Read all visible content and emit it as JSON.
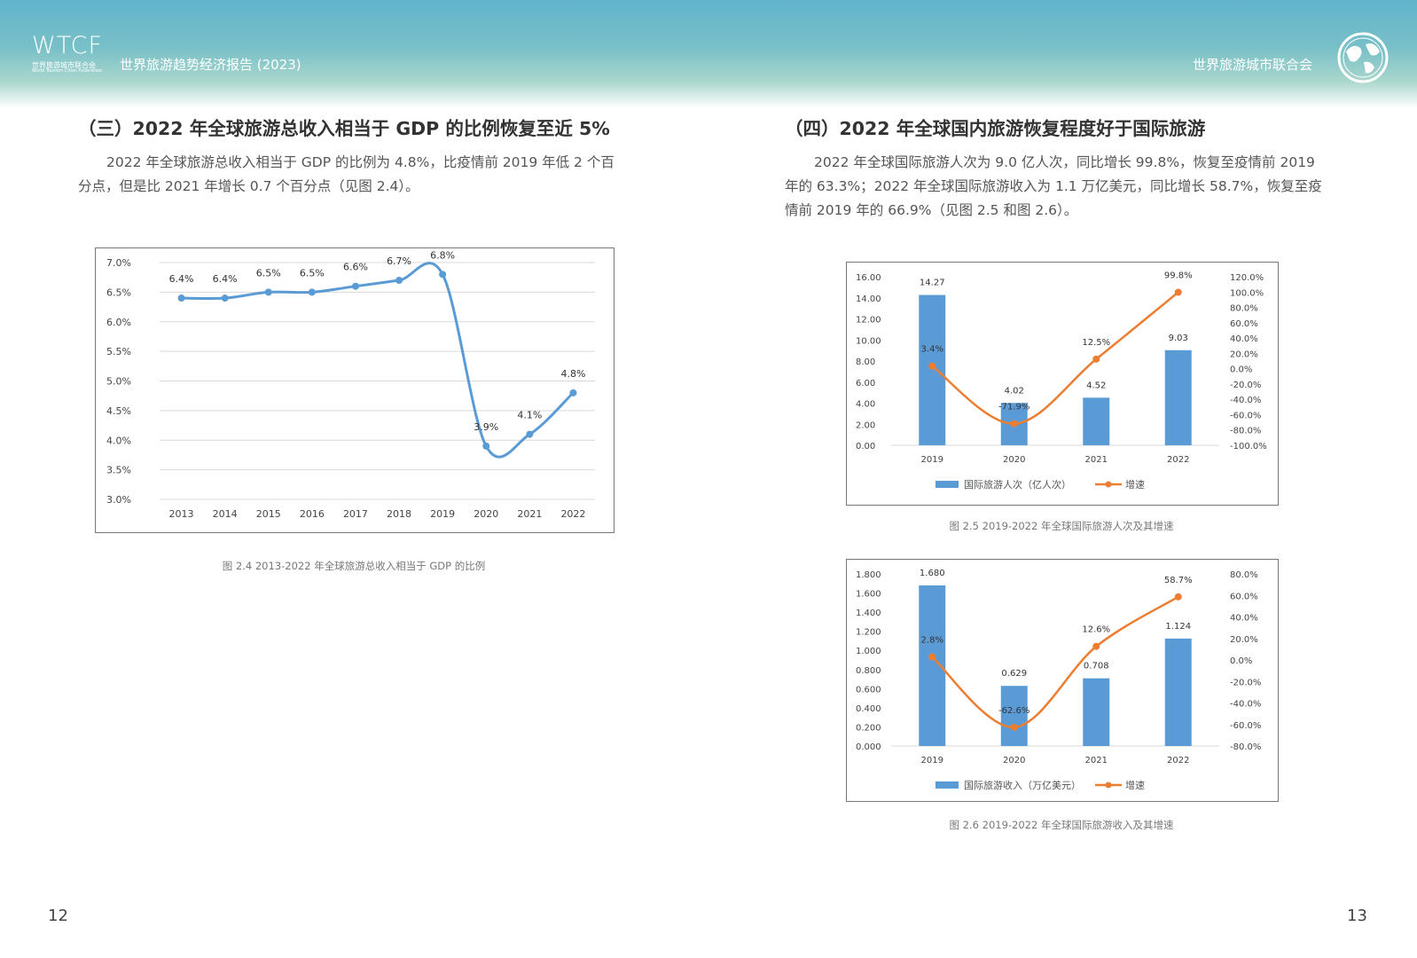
{
  "header": {
    "logo_text": "WTCF",
    "logo_sub_cn": "世界旅游城市联合会",
    "logo_sub_en": "World Tourism Cities Federation",
    "report_title": "世界旅游趋势经济报告 (2023)",
    "org_name": "世界旅游城市联合会"
  },
  "left": {
    "section_title": "（三）2022 年全球旅游总收入相当于 GDP 的比例恢复至近 5%",
    "paragraph_lines": [
      "2022 年全球旅游总收入相当于 GDP 的比例为 4.8%，比疫情前 2019 年低 2 个百",
      "分点，但是比 2021 年增长 0.7 个百分点（见图 2.4）。"
    ],
    "caption": "图 2.4 2013-2022 年全球旅游总收入相当于 GDP 的比例",
    "page_number": "12"
  },
  "right": {
    "section_title": "（四）2022 年全球国内旅游恢复程度好于国际旅游",
    "paragraph_lines": [
      "2022 年全球国际旅游人次为 9.0 亿人次，同比增长 99.8%，恢复至疫情前 2019",
      "年的 63.3%；2022 年全球国际旅游收入为 1.1 万亿美元，同比增长 58.7%，恢复至疫",
      "情前 2019 年的 66.9%（见图 2.5 和图 2.6）。"
    ],
    "caption_1": "图 2.5 2019-2022 年全球国际旅游人次及其增速",
    "caption_2": "图 2.6 2019-2022 年全球国际旅游收入及其增速",
    "page_number": "13"
  },
  "chart_data": [
    {
      "type": "line",
      "x": [
        "2013",
        "2014",
        "2015",
        "2016",
        "2017",
        "2018",
        "2019",
        "2020",
        "2021",
        "2022"
      ],
      "values": [
        6.4,
        6.4,
        6.5,
        6.5,
        6.6,
        6.7,
        6.8,
        3.9,
        4.1,
        4.8
      ],
      "labels": [
        "6.4%",
        "6.4%",
        "6.5%",
        "6.5%",
        "6.6%",
        "6.7%",
        "6.8%",
        "3.9%",
        "4.1%",
        "4.8%"
      ],
      "y_ticks": [
        "7.0%",
        "6.5%",
        "6.0%",
        "5.5%",
        "5.0%",
        "4.5%",
        "4.0%",
        "3.5%",
        "3.0%"
      ],
      "ylim": [
        3.0,
        7.0
      ],
      "grid": true,
      "color": "#5b9bd5"
    },
    {
      "type": "bar",
      "categories": [
        "2019",
        "2020",
        "2021",
        "2022"
      ],
      "series": [
        {
          "name": "国际旅游人次（亿人次）",
          "type": "bar",
          "values": [
            14.27,
            4.02,
            4.52,
            9.03
          ],
          "labels": [
            "14.27",
            "4.02",
            "4.52",
            "9.03"
          ],
          "color": "#5b9bd5"
        },
        {
          "name": "增速",
          "type": "line",
          "values": [
            3.4,
            -71.9,
            12.5,
            99.8
          ],
          "labels": [
            "3.4%",
            "-71.9%",
            "12.5%",
            "99.8%"
          ],
          "color": "#ed7d31"
        }
      ],
      "y_left_ticks": [
        "16.00",
        "14.00",
        "12.00",
        "10.00",
        "8.00",
        "6.00",
        "4.00",
        "2.00",
        "0.00"
      ],
      "y_right_ticks": [
        "120.0%",
        "100.0%",
        "80.0%",
        "60.0%",
        "40.0%",
        "20.0%",
        "0.0%",
        "-20.0%",
        "-40.0%",
        "-60.0%",
        "-80.0%",
        "-100.0%"
      ],
      "ylim_left": [
        0,
        16
      ],
      "ylim_right": [
        -100,
        120
      ],
      "legend": "bottom"
    },
    {
      "type": "bar",
      "categories": [
        "2019",
        "2020",
        "2021",
        "2022"
      ],
      "series": [
        {
          "name": "国际旅游收入（万亿美元）",
          "type": "bar",
          "values": [
            1.68,
            0.629,
            0.708,
            1.124
          ],
          "labels": [
            "1.680",
            "0.629",
            "0.708",
            "1.124"
          ],
          "color": "#5b9bd5"
        },
        {
          "name": "增速",
          "type": "line",
          "values": [
            2.8,
            -62.6,
            12.6,
            58.7
          ],
          "labels": [
            "2.8%",
            "-62.6%",
            "12.6%",
            "58.7%"
          ],
          "color": "#ed7d31"
        }
      ],
      "y_left_ticks": [
        "1.800",
        "1.600",
        "1.400",
        "1.200",
        "1.000",
        "0.800",
        "0.600",
        "0.400",
        "0.200",
        "0.000"
      ],
      "y_right_ticks": [
        "80.0%",
        "60.0%",
        "40.0%",
        "20.0%",
        "0.0%",
        "-20.0%",
        "-40.0%",
        "-60.0%",
        "-80.0%"
      ],
      "ylim_left": [
        0,
        1.8
      ],
      "ylim_right": [
        -80,
        80
      ],
      "legend": "bottom"
    }
  ]
}
